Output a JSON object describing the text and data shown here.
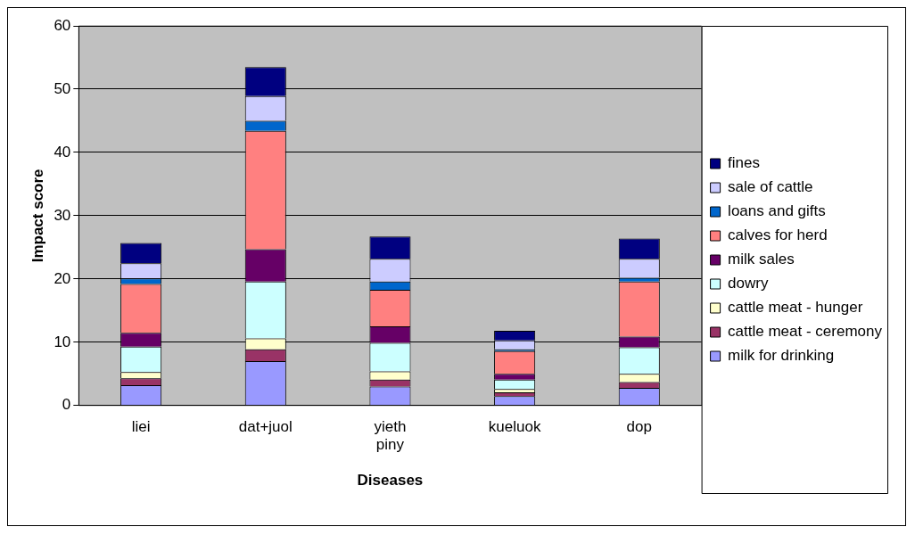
{
  "chart_data": {
    "type": "bar",
    "stacked": true,
    "xlabel": "Diseases",
    "ylabel": "Impact score",
    "categories": [
      "liei",
      "dat+juol",
      "yieth piny",
      "kueluok",
      "dop"
    ],
    "series": [
      {
        "name": "milk for drinking",
        "color": "#9999ff",
        "values": [
          3.2,
          7.0,
          3.0,
          1.5,
          2.8
        ]
      },
      {
        "name": "cattle meat - ceremony",
        "color": "#993366",
        "values": [
          1.1,
          1.9,
          1.1,
          0.6,
          0.9
        ]
      },
      {
        "name": "cattle meat - hunger",
        "color": "#ffffcc",
        "values": [
          1.0,
          1.7,
          1.3,
          0.5,
          1.3
        ]
      },
      {
        "name": "dowry",
        "color": "#ccffff",
        "values": [
          4.0,
          9.0,
          4.5,
          1.5,
          4.2
        ]
      },
      {
        "name": "milk sales",
        "color": "#660066",
        "values": [
          2.2,
          5.1,
          2.6,
          0.9,
          1.7
        ]
      },
      {
        "name": "calves for herd",
        "color": "#ff8080",
        "values": [
          7.7,
          18.7,
          5.8,
          3.6,
          8.7
        ]
      },
      {
        "name": "loans and gifts",
        "color": "#0066cc",
        "values": [
          0.9,
          1.6,
          1.3,
          0.3,
          0.6
        ]
      },
      {
        "name": "sale of cattle",
        "color": "#ccccff",
        "values": [
          2.4,
          3.9,
          3.6,
          1.4,
          3.0
        ]
      },
      {
        "name": "fines",
        "color": "#000080",
        "values": [
          3.2,
          4.6,
          3.5,
          1.5,
          3.2
        ]
      }
    ],
    "ylim": [
      0,
      60
    ],
    "yticks": [
      0,
      10,
      20,
      30,
      40,
      50,
      60
    ],
    "grid": "y",
    "legend": "right"
  }
}
